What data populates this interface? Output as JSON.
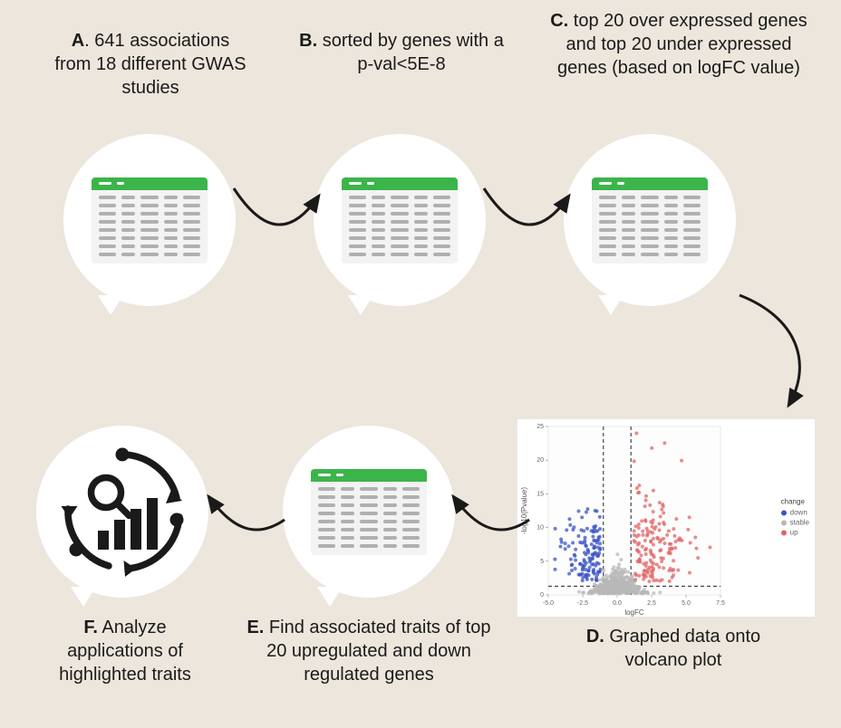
{
  "background_color": "#ece6dd",
  "bubble_color": "#ffffff",
  "sheet_header_color": "#3bb54a",
  "sheet_cell_color": "#b0b0b0",
  "steps": {
    "A": {
      "prefix": "A",
      "text": ". 641 associations from 18 different GWAS studies"
    },
    "B": {
      "prefix": "B.",
      "text": " sorted by genes with a p-val<5E-8"
    },
    "C": {
      "prefix": "C.",
      "text": " top 20 over expressed genes and top  20 under expressed genes (based on logFC value)"
    },
    "D": {
      "prefix": "D.",
      "text": " Graphed data onto volcano plot"
    },
    "E": {
      "prefix": "E.",
      "text": " Find associated traits of top 20 upregulated and down regulated genes"
    },
    "F": {
      "prefix": "F.",
      "text": " Analyze applications of highlighted traits"
    }
  },
  "volcano": {
    "xlabel": "logFC",
    "ylabel": "-log10(Pvalue)",
    "xlim": [
      -5.0,
      7.5
    ],
    "ylim": [
      0,
      25
    ],
    "xticks": [
      -5.0,
      -2.5,
      0.0,
      2.5,
      5.0,
      7.5
    ],
    "yticks": [
      0,
      5,
      10,
      15,
      20,
      25
    ],
    "hthresh_y": 1.3,
    "vthresh_neg": -1.0,
    "vthresh_pos": 1.0,
    "legend_title": "change",
    "legend_items": [
      {
        "label": "down",
        "color": "#3b53c4"
      },
      {
        "label": "stable",
        "color": "#b8b8b8"
      },
      {
        "label": "up",
        "color": "#e06666"
      }
    ],
    "colors": {
      "down": "#3b53c4",
      "stable": "#b8b8b8",
      "up": "#e06666"
    },
    "marker_radius": 2.0,
    "marker_opacity": 0.75,
    "threshold_dash": "4 3",
    "n_down": 130,
    "n_up": 160,
    "n_stable": 420
  }
}
